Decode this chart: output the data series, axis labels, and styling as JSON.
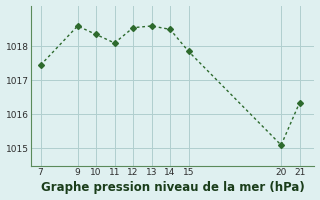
{
  "x": [
    7,
    9,
    10,
    11,
    12,
    13,
    14,
    15,
    20,
    21
  ],
  "y": [
    1017.45,
    1018.6,
    1018.35,
    1018.1,
    1018.55,
    1018.6,
    1018.5,
    1017.85,
    1015.1,
    1016.35
  ],
  "xticks": [
    7,
    9,
    10,
    11,
    12,
    13,
    14,
    15,
    20,
    21
  ],
  "yticks": [
    1015,
    1016,
    1017,
    1018
  ],
  "ylim": [
    1014.5,
    1019.2
  ],
  "xlim": [
    6.5,
    21.8
  ],
  "xlabel": "Graphe pression niveau de la mer (hPa)",
  "line_color": "#2d6a2d",
  "marker": "D",
  "marker_size": 3,
  "bg_color": "#dff0f0",
  "grid_color": "#b0cece",
  "title_fontsize": 9,
  "label_fontsize": 8.5
}
